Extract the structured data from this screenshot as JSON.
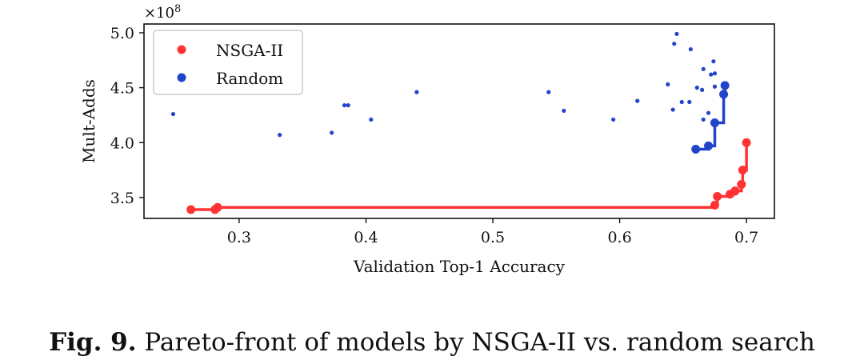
{
  "chart_data": {
    "type": "scatter",
    "xlabel": "Validation Top-1 Accuracy",
    "ylabel": "Mult-Adds",
    "y_multiplier": "×10",
    "y_multiplier_exp": "8",
    "xlim": [
      0.225,
      0.722
    ],
    "ylim": [
      3.31,
      5.08
    ],
    "xticks": [
      0.3,
      0.4,
      0.5,
      0.6,
      0.7
    ],
    "xtick_labels": [
      "0.3",
      "0.4",
      "0.5",
      "0.6",
      "0.7"
    ],
    "yticks": [
      3.5,
      4.0,
      4.5,
      5.0
    ],
    "ytick_labels": [
      "3.5",
      "4.0",
      "4.5",
      "5.0"
    ],
    "grid": false,
    "legend_position": "top-left",
    "series": [
      {
        "name": "NSGA-II",
        "color": "#ff3333",
        "pareto": [
          [
            0.262,
            3.39
          ],
          [
            0.281,
            3.39
          ],
          [
            0.283,
            3.41
          ],
          [
            0.675,
            3.43
          ],
          [
            0.677,
            3.51
          ],
          [
            0.687,
            3.53
          ],
          [
            0.691,
            3.56
          ],
          [
            0.696,
            3.62
          ],
          [
            0.697,
            3.75
          ],
          [
            0.7,
            4.0
          ]
        ],
        "others": []
      },
      {
        "name": "Random",
        "color": "#2244cc",
        "pareto": [
          [
            0.66,
            3.94
          ],
          [
            0.67,
            3.97
          ],
          [
            0.675,
            4.18
          ],
          [
            0.682,
            4.44
          ],
          [
            0.683,
            4.52
          ]
        ],
        "others": [
          [
            0.248,
            4.26
          ],
          [
            0.332,
            4.07
          ],
          [
            0.373,
            4.09
          ],
          [
            0.383,
            4.34
          ],
          [
            0.386,
            4.34
          ],
          [
            0.404,
            4.21
          ],
          [
            0.44,
            4.46
          ],
          [
            0.544,
            4.46
          ],
          [
            0.556,
            4.29
          ],
          [
            0.595,
            4.21
          ],
          [
            0.614,
            4.38
          ],
          [
            0.645,
            4.99
          ],
          [
            0.643,
            4.9
          ],
          [
            0.656,
            4.85
          ],
          [
            0.674,
            4.74
          ],
          [
            0.666,
            4.67
          ],
          [
            0.672,
            4.62
          ],
          [
            0.675,
            4.63
          ],
          [
            0.638,
            4.53
          ],
          [
            0.661,
            4.5
          ],
          [
            0.665,
            4.48
          ],
          [
            0.675,
            4.51
          ],
          [
            0.649,
            4.37
          ],
          [
            0.655,
            4.37
          ],
          [
            0.642,
            4.3
          ],
          [
            0.67,
            4.27
          ],
          [
            0.666,
            4.21
          ]
        ]
      }
    ]
  },
  "caption": {
    "label": "Fig. 9.",
    "text": " Pareto-front of models by NSGA-II vs. random search"
  }
}
